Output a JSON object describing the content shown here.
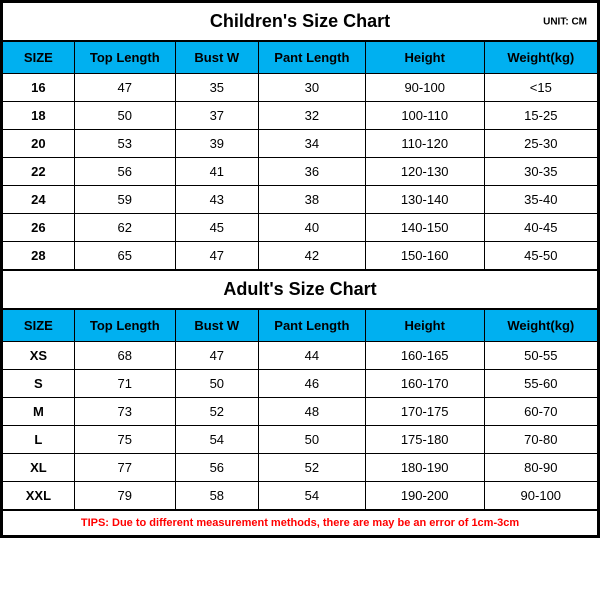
{
  "colors": {
    "header_bg": "#00b0f0",
    "border": "#000000",
    "tips_text": "#ff0000",
    "background": "#ffffff"
  },
  "unit_label": "UNIT: CM",
  "columns": [
    "SIZE",
    "Top Length",
    "Bust W",
    "Pant Length",
    "Height",
    "Weight(kg)"
  ],
  "children": {
    "title": "Children's Size Chart",
    "rows": [
      [
        "16",
        "47",
        "35",
        "30",
        "90-100",
        "<15"
      ],
      [
        "18",
        "50",
        "37",
        "32",
        "100-110",
        "15-25"
      ],
      [
        "20",
        "53",
        "39",
        "34",
        "110-120",
        "25-30"
      ],
      [
        "22",
        "56",
        "41",
        "36",
        "120-130",
        "30-35"
      ],
      [
        "24",
        "59",
        "43",
        "38",
        "130-140",
        "35-40"
      ],
      [
        "26",
        "62",
        "45",
        "40",
        "140-150",
        "40-45"
      ],
      [
        "28",
        "65",
        "47",
        "42",
        "150-160",
        "45-50"
      ]
    ]
  },
  "adult": {
    "title": "Adult's Size Chart",
    "rows": [
      [
        "XS",
        "68",
        "47",
        "44",
        "160-165",
        "50-55"
      ],
      [
        "S",
        "71",
        "50",
        "46",
        "160-170",
        "55-60"
      ],
      [
        "M",
        "73",
        "52",
        "48",
        "170-175",
        "60-70"
      ],
      [
        "L",
        "75",
        "54",
        "50",
        "175-180",
        "70-80"
      ],
      [
        "XL",
        "77",
        "56",
        "52",
        "180-190",
        "80-90"
      ],
      [
        "XXL",
        "79",
        "58",
        "54",
        "190-200",
        "90-100"
      ]
    ]
  },
  "tips": "TIPS: Due to different measurement methods, there are may be an error of 1cm-3cm"
}
